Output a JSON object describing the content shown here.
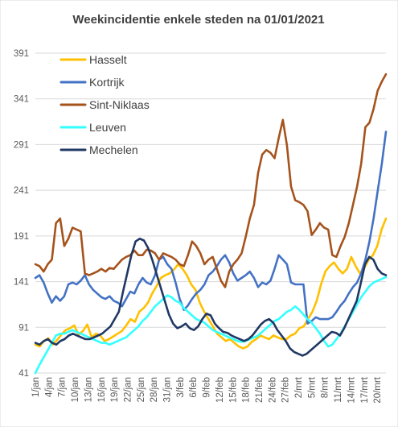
{
  "chart_data": {
    "type": "line",
    "title": "Weekincidentie  enkele steden na 01/01/2021",
    "xlabel": "",
    "ylabel": "",
    "ylim": [
      41,
      391
    ],
    "yticks": [
      41,
      91,
      141,
      191,
      241,
      291,
      341,
      391
    ],
    "grid": "horizontal",
    "legend_position": "top-left",
    "x_start": "1/jan",
    "x_tick_labels": [
      "1/jan",
      "4/jan",
      "7/jan",
      "10/jan",
      "13/jan",
      "16/jan",
      "19/jan",
      "22/jan",
      "25/jan",
      "28/jan",
      "31/jan",
      "3/feb",
      "6/feb",
      "9/feb",
      "12/feb",
      "15/feb",
      "18/feb",
      "21/feb",
      "24/feb",
      "27/feb",
      "2/mrt",
      "5/mrt",
      "8/mrt",
      "11/mrt",
      "14/mrt",
      "17/mrt",
      "20/mrt"
    ],
    "series": [
      {
        "name": "Hasselt",
        "color": "#ffc000",
        "values": [
          72,
          70,
          76,
          79,
          72,
          77,
          83,
          88,
          90,
          93,
          83,
          87,
          94,
          80,
          84,
          82,
          76,
          78,
          81,
          84,
          87,
          93,
          100,
          97,
          108,
          112,
          118,
          128,
          136,
          145,
          148,
          150,
          154,
          160,
          155,
          148,
          138,
          132,
          118,
          108,
          100,
          92,
          84,
          80,
          76,
          78,
          74,
          70,
          68,
          70,
          75,
          78,
          82,
          80,
          78,
          82,
          80,
          78,
          78,
          82,
          84,
          90,
          92,
          100,
          108,
          120,
          138,
          152,
          158,
          162,
          155,
          150,
          155,
          168,
          158,
          150,
          156,
          165,
          170,
          180,
          198,
          210
        ]
      },
      {
        "name": "Kortrijk",
        "color": "#4472c4",
        "values": [
          145,
          148,
          140,
          128,
          118,
          125,
          120,
          125,
          138,
          140,
          138,
          142,
          148,
          138,
          132,
          128,
          124,
          122,
          125,
          120,
          118,
          114,
          122,
          130,
          128,
          138,
          145,
          140,
          138,
          148,
          165,
          168,
          160,
          155,
          140,
          122,
          110,
          115,
          122,
          128,
          132,
          138,
          148,
          152,
          158,
          165,
          170,
          162,
          150,
          142,
          145,
          148,
          152,
          145,
          135,
          140,
          138,
          142,
          155,
          170,
          165,
          160,
          140,
          138,
          138,
          138,
          95,
          98,
          102,
          100,
          100,
          100,
          102,
          108,
          115,
          120,
          128,
          135,
          140,
          150,
          165,
          185,
          210,
          240,
          270,
          305
        ]
      },
      {
        "name": "Sint-Niklaas",
        "color": "#a5531c",
        "values": [
          160,
          158,
          152,
          160,
          165,
          205,
          210,
          180,
          188,
          200,
          198,
          196,
          150,
          148,
          150,
          152,
          155,
          152,
          156,
          155,
          160,
          165,
          168,
          170,
          175,
          170,
          170,
          176,
          175,
          172,
          165,
          172,
          170,
          168,
          165,
          160,
          158,
          170,
          185,
          180,
          172,
          160,
          165,
          168,
          155,
          142,
          135,
          152,
          160,
          165,
          172,
          190,
          210,
          225,
          260,
          280,
          285,
          282,
          276,
          298,
          318,
          290,
          245,
          230,
          228,
          225,
          218,
          192,
          198,
          205,
          200,
          198,
          170,
          168,
          180,
          190,
          205,
          225,
          245,
          270,
          310,
          315,
          330,
          350,
          360,
          368
        ]
      },
      {
        "name": "Leuven",
        "color": "#33ffff",
        "values": [
          41,
          50,
          58,
          66,
          74,
          82,
          84,
          84,
          86,
          88,
          86,
          84,
          82,
          80,
          78,
          76,
          74,
          74,
          72,
          74,
          76,
          78,
          80,
          84,
          88,
          92,
          98,
          102,
          108,
          114,
          118,
          122,
          126,
          124,
          120,
          118,
          112,
          108,
          104,
          100,
          98,
          96,
          92,
          88,
          86,
          84,
          82,
          80,
          78,
          76,
          75,
          76,
          78,
          80,
          82,
          86,
          90,
          94,
          98,
          100,
          104,
          108,
          110,
          114,
          110,
          105,
          100,
          96,
          90,
          84,
          76,
          70,
          72,
          78,
          84,
          92,
          100,
          108,
          116,
          124,
          130,
          136,
          140,
          142,
          144,
          146
        ]
      },
      {
        "name": "Mechelen",
        "color": "#203864",
        "values": [
          74,
          72,
          76,
          78,
          74,
          72,
          76,
          78,
          82,
          84,
          82,
          80,
          78,
          78,
          80,
          82,
          84,
          88,
          92,
          100,
          108,
          130,
          150,
          170,
          185,
          188,
          186,
          178,
          165,
          150,
          135,
          120,
          105,
          95,
          90,
          92,
          95,
          90,
          88,
          92,
          100,
          106,
          104,
          95,
          90,
          86,
          85,
          82,
          80,
          78,
          76,
          78,
          82,
          88,
          94,
          98,
          100,
          96,
          88,
          82,
          76,
          68,
          64,
          62,
          60,
          62,
          66,
          70,
          74,
          78,
          82,
          86,
          85,
          82,
          90,
          100,
          110,
          120,
          140,
          160,
          168,
          165,
          155,
          150,
          148
        ]
      }
    ]
  }
}
